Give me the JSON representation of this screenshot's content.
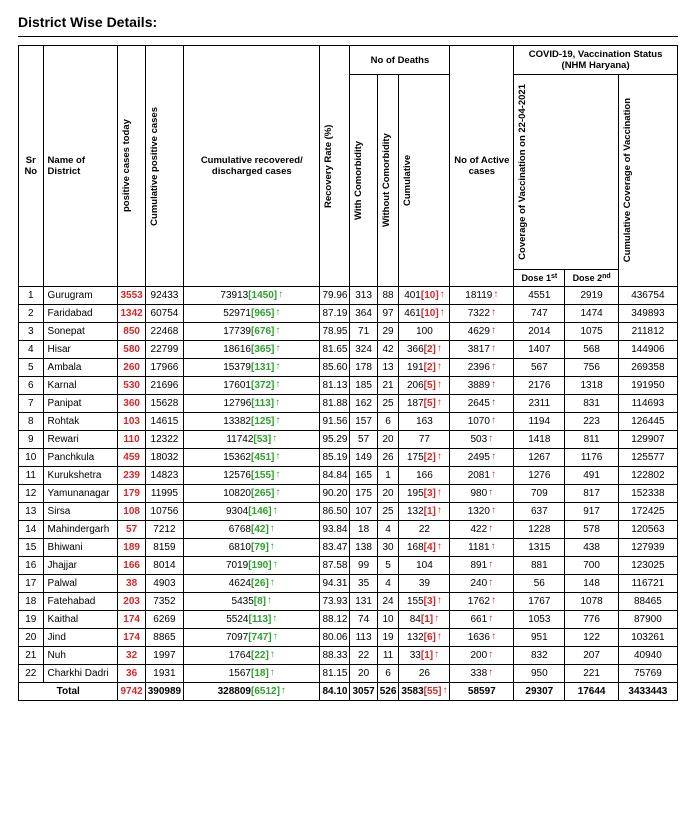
{
  "title": "District Wise Details:",
  "header": {
    "sr": "Sr No",
    "district": "Name of District",
    "pos_today": "positive cases today",
    "cum_pos": "Cumulative positive cases",
    "recovered": "Cumulative recovered/ discharged cases",
    "recovery_rate": "Recovery Rate (%)",
    "deaths_group": "No of Deaths",
    "with_comorb": "With Comorbidity",
    "without_comorb": "Without Comorbidity",
    "cum_deaths": "Cumulative",
    "active": "No of Active cases",
    "vacc_group": "COVID-19, Vaccination Status  (NHM Haryana)",
    "vacc_coverage": "Coverage of Vaccination on 22-04-2021",
    "dose1": "Dose 1",
    "dose2": "Dose 2",
    "cum_vacc": "Cumulative Coverage of Vaccination"
  },
  "rows": [
    {
      "sr": 1,
      "district": "Gurugram",
      "pos_today": "3553",
      "cum_pos": "92433",
      "rec_base": "73913",
      "rec_inc": "1450",
      "rec_rate": "79.96",
      "with_c": "313",
      "without_c": "88",
      "cum_d_base": "401",
      "cum_d_inc": "10",
      "active": "18119",
      "dose1": "4551",
      "dose2": "2919",
      "cum_vacc": "436754"
    },
    {
      "sr": 2,
      "district": "Faridabad",
      "pos_today": "1342",
      "cum_pos": "60754",
      "rec_base": "52971",
      "rec_inc": "965",
      "rec_rate": "87.19",
      "with_c": "364",
      "without_c": "97",
      "cum_d_base": "461",
      "cum_d_inc": "10",
      "active": "7322",
      "dose1": "747",
      "dose2": "1474",
      "cum_vacc": "349893"
    },
    {
      "sr": 3,
      "district": "Sonepat",
      "pos_today": "850",
      "cum_pos": "22468",
      "rec_base": "17739",
      "rec_inc": "676",
      "rec_rate": "78.95",
      "with_c": "71",
      "without_c": "29",
      "cum_d_base": "100",
      "cum_d_inc": "",
      "active": "4629",
      "dose1": "2014",
      "dose2": "1075",
      "cum_vacc": "211812"
    },
    {
      "sr": 4,
      "district": "Hisar",
      "pos_today": "580",
      "cum_pos": "22799",
      "rec_base": "18616",
      "rec_inc": "365",
      "rec_rate": "81.65",
      "with_c": "324",
      "without_c": "42",
      "cum_d_base": "366",
      "cum_d_inc": "2",
      "active": "3817",
      "dose1": "1407",
      "dose2": "568",
      "cum_vacc": "144906"
    },
    {
      "sr": 5,
      "district": "Ambala",
      "pos_today": "260",
      "cum_pos": "17966",
      "rec_base": "15379",
      "rec_inc": "131",
      "rec_rate": "85.60",
      "with_c": "178",
      "without_c": "13",
      "cum_d_base": "191",
      "cum_d_inc": "2",
      "active": "2396",
      "dose1": "567",
      "dose2": "756",
      "cum_vacc": "269358"
    },
    {
      "sr": 6,
      "district": "Karnal",
      "pos_today": "530",
      "cum_pos": "21696",
      "rec_base": "17601",
      "rec_inc": "372",
      "rec_rate": "81.13",
      "with_c": "185",
      "without_c": "21",
      "cum_d_base": "206",
      "cum_d_inc": "5",
      "active": "3889",
      "dose1": "2176",
      "dose2": "1318",
      "cum_vacc": "191950"
    },
    {
      "sr": 7,
      "district": "Panipat",
      "pos_today": "360",
      "cum_pos": "15628",
      "rec_base": "12796",
      "rec_inc": "113",
      "rec_rate": "81.88",
      "with_c": "162",
      "without_c": "25",
      "cum_d_base": "187",
      "cum_d_inc": "5",
      "active": "2645",
      "dose1": "2311",
      "dose2": "831",
      "cum_vacc": "114693"
    },
    {
      "sr": 8,
      "district": "Rohtak",
      "pos_today": "103",
      "cum_pos": "14615",
      "rec_base": "13382",
      "rec_inc": "125",
      "rec_rate": "91.56",
      "with_c": "157",
      "without_c": "6",
      "cum_d_base": "163",
      "cum_d_inc": "",
      "active": "1070",
      "dose1": "1194",
      "dose2": "223",
      "cum_vacc": "126445"
    },
    {
      "sr": 9,
      "district": "Rewari",
      "pos_today": "110",
      "cum_pos": "12322",
      "rec_base": "11742",
      "rec_inc": "53",
      "rec_rate": "95.29",
      "with_c": "57",
      "without_c": "20",
      "cum_d_base": "77",
      "cum_d_inc": "",
      "active": "503",
      "dose1": "1418",
      "dose2": "811",
      "cum_vacc": "129907"
    },
    {
      "sr": 10,
      "district": "Panchkula",
      "pos_today": "459",
      "cum_pos": "18032",
      "rec_base": "15362",
      "rec_inc": "451",
      "rec_rate": "85.19",
      "with_c": "149",
      "without_c": "26",
      "cum_d_base": "175",
      "cum_d_inc": "2",
      "active": "2495",
      "dose1": "1267",
      "dose2": "1176",
      "cum_vacc": "125577"
    },
    {
      "sr": 11,
      "district": "Kurukshetra",
      "pos_today": "239",
      "cum_pos": "14823",
      "rec_base": "12576",
      "rec_inc": "155",
      "rec_rate": "84.84",
      "with_c": "165",
      "without_c": "1",
      "cum_d_base": "166",
      "cum_d_inc": "",
      "active": "2081",
      "dose1": "1276",
      "dose2": "491",
      "cum_vacc": "122802"
    },
    {
      "sr": 12,
      "district": "Yamunanagar",
      "pos_today": "179",
      "cum_pos": "11995",
      "rec_base": "10820",
      "rec_inc": "265",
      "rec_rate": "90.20",
      "with_c": "175",
      "without_c": "20",
      "cum_d_base": "195",
      "cum_d_inc": "3",
      "active": "980",
      "dose1": "709",
      "dose2": "817",
      "cum_vacc": "152338"
    },
    {
      "sr": 13,
      "district": "Sirsa",
      "pos_today": "108",
      "cum_pos": "10756",
      "rec_base": "9304",
      "rec_inc": "146",
      "rec_rate": "86.50",
      "with_c": "107",
      "without_c": "25",
      "cum_d_base": "132",
      "cum_d_inc": "1",
      "active": "1320",
      "dose1": "637",
      "dose2": "917",
      "cum_vacc": "172425"
    },
    {
      "sr": 14,
      "district": "Mahindergarh",
      "pos_today": "57",
      "cum_pos": "7212",
      "rec_base": "6768",
      "rec_inc": "42",
      "rec_rate": "93.84",
      "with_c": "18",
      "without_c": "4",
      "cum_d_base": "22",
      "cum_d_inc": "",
      "active": "422",
      "dose1": "1228",
      "dose2": "578",
      "cum_vacc": "120563"
    },
    {
      "sr": 15,
      "district": "Bhiwani",
      "pos_today": "189",
      "cum_pos": "8159",
      "rec_base": "6810",
      "rec_inc": "79",
      "rec_rate": "83.47",
      "with_c": "138",
      "without_c": "30",
      "cum_d_base": "168",
      "cum_d_inc": "4",
      "active": "1181",
      "dose1": "1315",
      "dose2": "438",
      "cum_vacc": "127939"
    },
    {
      "sr": 16,
      "district": "Jhajjar",
      "pos_today": "166",
      "cum_pos": "8014",
      "rec_base": "7019",
      "rec_inc": "190",
      "rec_rate": "87.58",
      "with_c": "99",
      "without_c": "5",
      "cum_d_base": "104",
      "cum_d_inc": "",
      "active": "891",
      "dose1": "881",
      "dose2": "700",
      "cum_vacc": "123025"
    },
    {
      "sr": 17,
      "district": "Palwal",
      "pos_today": "38",
      "cum_pos": "4903",
      "rec_base": "4624",
      "rec_inc": "26",
      "rec_rate": "94.31",
      "with_c": "35",
      "without_c": "4",
      "cum_d_base": "39",
      "cum_d_inc": "",
      "active": "240",
      "dose1": "56",
      "dose2": "148",
      "cum_vacc": "116721"
    },
    {
      "sr": 18,
      "district": "Fatehabad",
      "pos_today": "203",
      "cum_pos": "7352",
      "rec_base": "5435",
      "rec_inc": "8",
      "rec_rate": "73.93",
      "with_c": "131",
      "without_c": "24",
      "cum_d_base": "155",
      "cum_d_inc": "3",
      "active": "1762",
      "dose1": "1767",
      "dose2": "1078",
      "cum_vacc": "88465"
    },
    {
      "sr": 19,
      "district": "Kaithal",
      "pos_today": "174",
      "cum_pos": "6269",
      "rec_base": "5524",
      "rec_inc": "113",
      "rec_rate": "88.12",
      "with_c": "74",
      "without_c": "10",
      "cum_d_base": "84",
      "cum_d_inc": "1",
      "active": "661",
      "dose1": "1053",
      "dose2": "776",
      "cum_vacc": "87900"
    },
    {
      "sr": 20,
      "district": "Jind",
      "pos_today": "174",
      "cum_pos": "8865",
      "rec_base": "7097",
      "rec_inc": "747",
      "rec_rate": "80.06",
      "with_c": "113",
      "without_c": "19",
      "cum_d_base": "132",
      "cum_d_inc": "6",
      "active": "1636",
      "dose1": "951",
      "dose2": "122",
      "cum_vacc": "103261"
    },
    {
      "sr": 21,
      "district": "Nuh",
      "pos_today": "32",
      "cum_pos": "1997",
      "rec_base": "1764",
      "rec_inc": "22",
      "rec_rate": "88.33",
      "with_c": "22",
      "without_c": "11",
      "cum_d_base": "33",
      "cum_d_inc": "1",
      "active": "200",
      "dose1": "832",
      "dose2": "207",
      "cum_vacc": "40940"
    },
    {
      "sr": 22,
      "district": "Charkhi Dadri",
      "pos_today": "36",
      "cum_pos": "1931",
      "rec_base": "1567",
      "rec_inc": "18",
      "rec_rate": "81.15",
      "with_c": "20",
      "without_c": "6",
      "cum_d_base": "26",
      "cum_d_inc": "",
      "active": "338",
      "dose1": "950",
      "dose2": "221",
      "cum_vacc": "75769"
    }
  ],
  "total": {
    "label": "Total",
    "pos_today": "9742",
    "cum_pos": "390989",
    "rec_base": "328809",
    "rec_inc": "6512",
    "rec_rate": "84.10",
    "with_c": "3057",
    "without_c": "526",
    "cum_d_base": "3583",
    "cum_d_inc": "55",
    "active": "58597",
    "dose1": "29307",
    "dose2": "17644",
    "cum_vacc": "3433443"
  },
  "colors": {
    "positive": "#d62728",
    "increase": "#2ca02c",
    "border": "#000000",
    "bg": "#ffffff"
  }
}
